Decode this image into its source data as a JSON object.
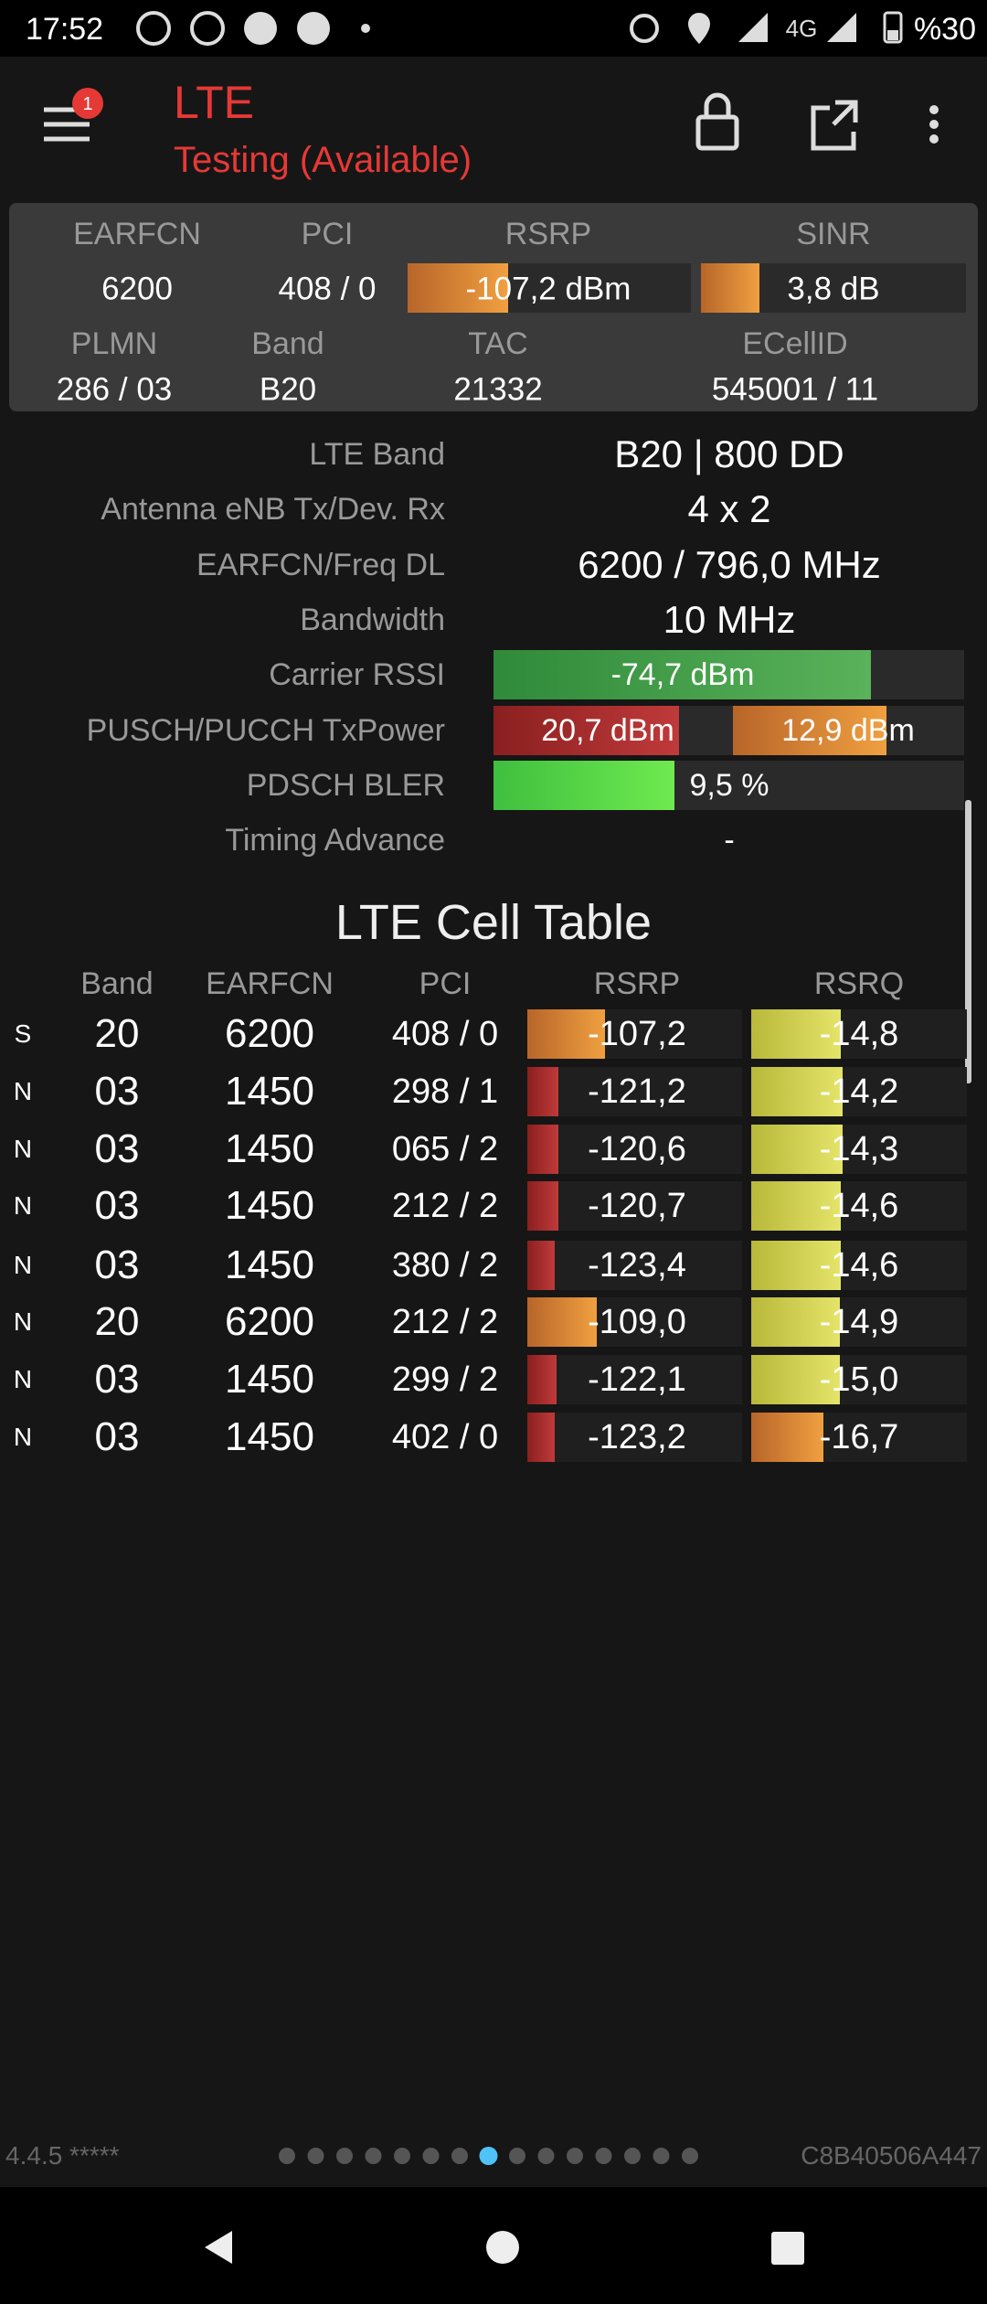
{
  "status_bar": {
    "time": "17:52",
    "network": "4G",
    "battery": "%30"
  },
  "app_bar": {
    "title": "LTE",
    "subtitle": "Testing (Available)",
    "badge": "1"
  },
  "summary": {
    "headers1": [
      "EARFCN",
      "PCI",
      "RSRP",
      "SINR"
    ],
    "values1": [
      "6200",
      "408 / 0",
      "-107,2 dBm",
      "3,8 dB"
    ],
    "headers2": [
      "PLMN",
      "Band",
      "TAC",
      "ECellID"
    ],
    "values2": [
      "286 / 03",
      "B20",
      "21332",
      "545001 / 11"
    ]
  },
  "details": [
    {
      "label": "LTE Band",
      "value": "B20 | 800 DD"
    },
    {
      "label": "Antenna eNB Tx/Dev. Rx",
      "value": "4 x 2"
    },
    {
      "label": "EARFCN/Freq DL",
      "value": "6200 / 796,0 MHz"
    },
    {
      "label": "Bandwidth",
      "value": "10 MHz"
    },
    {
      "label": "Carrier RSSI",
      "value": "-74,7 dBm"
    },
    {
      "label": "PUSCH/PUCCH TxPower",
      "values": [
        "20,7 dBm",
        "12,9 dBm"
      ]
    },
    {
      "label": "PDSCH BLER",
      "value": "9,5 %"
    },
    {
      "label": "Timing Advance",
      "value": "-"
    }
  ],
  "cell_table": {
    "title": "LTE Cell Table",
    "columns": [
      "Band",
      "EARFCN",
      "PCI",
      "RSRP",
      "RSRQ"
    ],
    "rows": [
      [
        "S",
        "20",
        "6200",
        "408 / 0",
        "-107,2",
        "-14,8"
      ],
      [
        "N",
        "03",
        "1450",
        "298 / 1",
        "-121,2",
        "-14,2"
      ],
      [
        "N",
        "03",
        "1450",
        "065 / 2",
        "-120,6",
        "-14,3"
      ],
      [
        "N",
        "03",
        "1450",
        "212 / 2",
        "-120,7",
        "-14,6"
      ],
      [
        "N",
        "03",
        "1450",
        "380 / 2",
        "-123,4",
        "-14,6"
      ],
      [
        "N",
        "20",
        "6200",
        "212 / 2",
        "-109,0",
        "-14,9"
      ],
      [
        "N",
        "03",
        "1450",
        "299 / 2",
        "-122,1",
        "-15,0"
      ],
      [
        "N",
        "03",
        "1450",
        "402 / 0",
        "-123,2",
        "-16,7"
      ]
    ]
  },
  "footer": {
    "version": "4.4.5 *****",
    "device_id": "C8B40506A447"
  }
}
